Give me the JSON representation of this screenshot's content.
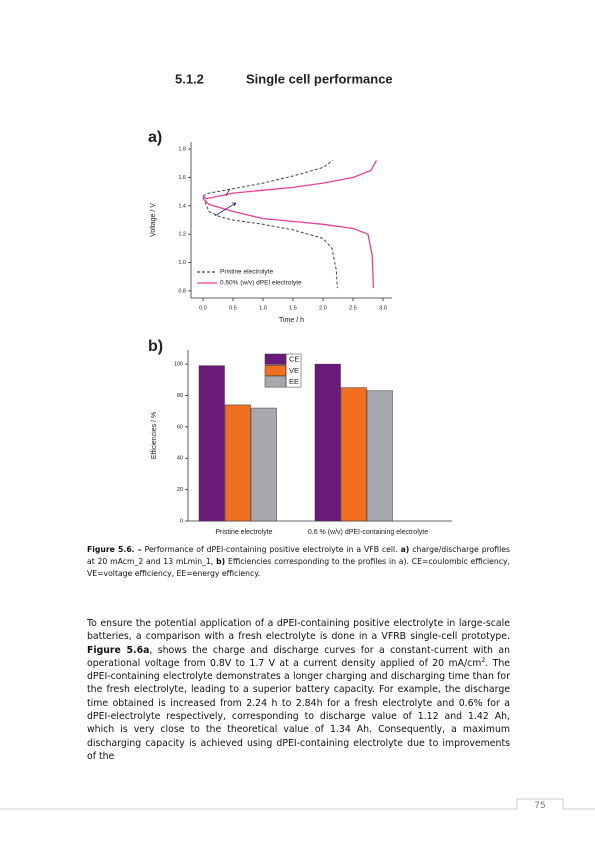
{
  "heading": {
    "number": "5.1.2",
    "title": "Single cell performance"
  },
  "chart_data": [
    {
      "type": "line",
      "panel_label": "a)",
      "xlabel": "Time / h",
      "ylabel": "Voltage / V",
      "xlim": [
        -0.2,
        3.15
      ],
      "ylim": [
        0.75,
        1.85
      ],
      "xticks": [
        {
          "value": 0,
          "label": "0.0"
        },
        0.5,
        {
          "value": 1,
          "label": "1.0"
        },
        1.5,
        {
          "value": 2,
          "label": "2.0"
        },
        2.5,
        {
          "value": 3,
          "label": "3.0"
        }
      ],
      "yticks": [
        0.8,
        {
          "value": 1,
          "label": "1.0"
        },
        1.2,
        1.4,
        1.6,
        1.8
      ],
      "series": [
        {
          "name": "Pristine electrolyte",
          "color": "#444444",
          "dashed": true,
          "x": [
            0,
            0.1,
            0.5,
            1.0,
            1.5,
            2.0,
            2.16,
            null,
            0,
            0.1,
            0.3,
            0.5,
            1.0,
            1.5,
            2.0,
            2.15,
            2.22,
            2.24
          ],
          "values": [
            1.47,
            1.49,
            1.52,
            1.56,
            1.61,
            1.67,
            1.72,
            null,
            1.46,
            1.36,
            1.32,
            1.3,
            1.27,
            1.23,
            1.17,
            1.1,
            0.95,
            0.82
          ]
        },
        {
          "name": "0.60% (w/v) dPEI electrolyte",
          "color": "#e8409a",
          "dashed": false,
          "x": [
            0,
            0.05,
            0.5,
            1.0,
            1.5,
            2.0,
            2.5,
            2.8,
            2.89,
            null,
            0,
            0.1,
            0.5,
            1.0,
            1.5,
            2.0,
            2.5,
            2.75,
            2.82,
            2.84
          ],
          "values": [
            1.47,
            1.45,
            1.49,
            1.51,
            1.53,
            1.56,
            1.6,
            1.65,
            1.72,
            null,
            1.45,
            1.41,
            1.36,
            1.31,
            1.29,
            1.27,
            1.24,
            1.2,
            1.05,
            0.82
          ]
        }
      ]
    },
    {
      "type": "bar",
      "panel_label": "b)",
      "ylabel": "Efficiencies / %",
      "categories": [
        "Pristine electrolyte",
        "0.6 % (w/v) dPEI-containing electrolyte"
      ],
      "ylim": [
        0,
        109
      ],
      "yticks": [
        0,
        20,
        40,
        60,
        80,
        100
      ],
      "series": [
        {
          "name": "CE",
          "color": "#6a1b7a",
          "values": [
            99,
            100
          ]
        },
        {
          "name": "VE",
          "color": "#f07020",
          "values": [
            74,
            85
          ]
        },
        {
          "name": "EE",
          "color": "#a8a8ae",
          "values": [
            72,
            83
          ]
        }
      ]
    }
  ],
  "caption": {
    "label": "Figure 5.6. –",
    "runs": [
      {
        "text": " Performance of dPEI-containing positive electrolyte in a VFB cell. ",
        "style": "normal"
      },
      {
        "text": "a)",
        "style": "bold"
      },
      {
        "text": " charge/discharge profiles at 20 mAcm_2 and 13 mLmin_1, ",
        "style": "normal"
      },
      {
        "text": "b)",
        "style": "bold"
      },
      {
        "text": " Efficiencies corresponding to the profiles in a). CE=coulombic efficiency, VE=voltage efficiency, EE=energy efficiency.",
        "style": "normal"
      }
    ]
  },
  "body": {
    "runs": [
      {
        "text": "To ensure the potential application of a dPEI-containing positive electrolyte in large-scale batteries, a comparison with a fresh electrolyte is done in a VFRB single-cell prototype. ",
        "style": "normal"
      },
      {
        "text": "Figure 5.6a",
        "style": "bold"
      },
      {
        "text": ", shows the charge and discharge curves for a constant-current with an operational voltage from 0.8V to 1.7 V at a current density applied of 20 mA/cm",
        "style": "normal"
      },
      {
        "text": "2",
        "style": "sup"
      },
      {
        "text": ". The dPEI-containing electrolyte demonstrates a longer charging and discharging time than for the fresh electrolyte, leading to a superior battery capacity. For example, the discharge time obtained is increased from 2.24 h to 2.84h for a fresh electrolyte and 0.6% for a dPEI-electrolyte respectively, corresponding to discharge value of 1.12 and 1.42 Ah, which is very close to the theoretical value of 1.34 Ah. Consequently, a maximum discharging capacity is achieved using dPEI-containing electrolyte due to improvements of the",
        "style": "normal"
      }
    ]
  },
  "footer": {
    "page_number": "75"
  }
}
